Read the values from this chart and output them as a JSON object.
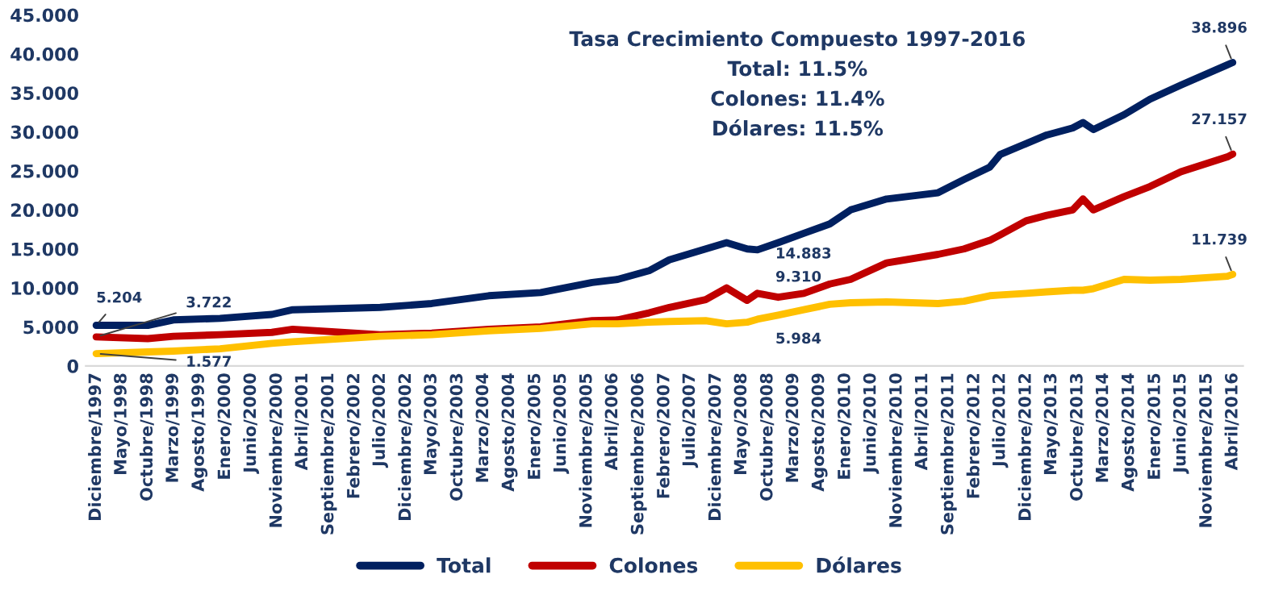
{
  "chart_data": {
    "type": "line",
    "annotations": [
      "Tasa Crecimiento Compuesto 1997-2016",
      "Total: 11.5%",
      "Colones: 11.4%",
      "Dólares: 11.5%"
    ],
    "x": [
      "1997-12",
      "1998-10",
      "1999-03",
      "1999-12",
      "2000-10",
      "2001-02",
      "2002-07",
      "2003-05",
      "2004-04",
      "2005-02",
      "2005-12",
      "2006-05",
      "2006-11",
      "2007-03",
      "2007-10",
      "2008-02",
      "2008-06",
      "2008-08",
      "2008-12",
      "2009-05",
      "2009-10",
      "2010-02",
      "2010-09",
      "2011-07",
      "2011-12",
      "2012-05",
      "2012-07",
      "2012-12",
      "2013-04",
      "2013-09",
      "2013-11",
      "2014-01",
      "2014-07",
      "2014-12",
      "2015-06",
      "2016-03",
      "2016-04"
    ],
    "series": [
      {
        "name": "Total",
        "color": "#002060",
        "values": [
          5.204,
          5.2,
          5.9,
          6.1,
          6.6,
          7.2,
          7.5,
          8.0,
          9.0,
          9.4,
          10.7,
          11.1,
          12.2,
          13.6,
          15.0,
          15.8,
          15.0,
          14.883,
          15.8,
          17.0,
          18.2,
          20.0,
          21.4,
          22.2,
          23.9,
          25.5,
          27.1,
          28.5,
          29.6,
          30.5,
          31.2,
          30.3,
          32.2,
          34.2,
          36.0,
          38.6,
          38.896
        ],
        "value_labels": [
          "5.204",
          null,
          null,
          null,
          null,
          null,
          null,
          null,
          null,
          null,
          null,
          null,
          null,
          null,
          null,
          null,
          null,
          "14.883",
          null,
          null,
          null,
          null,
          null,
          null,
          null,
          null,
          null,
          null,
          null,
          null,
          null,
          null,
          null,
          null,
          null,
          null,
          "38.896"
        ]
      },
      {
        "name": "Colones",
        "color": "#c00000",
        "values": [
          3.722,
          3.5,
          3.8,
          4.0,
          4.3,
          4.7,
          4.0,
          4.2,
          4.7,
          5.0,
          5.8,
          5.9,
          6.8,
          7.5,
          8.5,
          10.0,
          8.4,
          9.31,
          8.8,
          9.3,
          10.5,
          11.1,
          13.2,
          14.3,
          15.0,
          16.1,
          16.8,
          18.6,
          19.3,
          20.0,
          21.4,
          20.0,
          21.7,
          23.0,
          24.9,
          26.8,
          27.157
        ],
        "value_labels": [
          "3.722",
          null,
          null,
          null,
          null,
          null,
          null,
          null,
          null,
          null,
          null,
          null,
          null,
          null,
          null,
          null,
          null,
          "9.310",
          null,
          null,
          null,
          null,
          null,
          null,
          null,
          null,
          null,
          null,
          null,
          null,
          null,
          null,
          null,
          null,
          null,
          null,
          "27.157"
        ]
      },
      {
        "name": "Dólares",
        "color": "#ffc000",
        "values": [
          1.577,
          1.8,
          1.9,
          2.2,
          2.9,
          3.1,
          3.8,
          4.0,
          4.5,
          4.8,
          5.4,
          5.4,
          5.6,
          5.7,
          5.8,
          5.4,
          5.6,
          5.984,
          6.5,
          7.2,
          7.9,
          8.1,
          8.2,
          8.0,
          8.3,
          9.0,
          9.1,
          9.3,
          9.5,
          9.7,
          9.7,
          9.9,
          11.1,
          11.0,
          11.1,
          11.5,
          11.739
        ],
        "value_labels": [
          "1.577",
          null,
          null,
          null,
          null,
          null,
          null,
          null,
          null,
          null,
          null,
          null,
          null,
          null,
          null,
          null,
          null,
          "5.984",
          null,
          null,
          null,
          null,
          null,
          null,
          null,
          null,
          null,
          null,
          null,
          null,
          null,
          null,
          null,
          null,
          null,
          null,
          "11.739"
        ]
      }
    ],
    "xlim": [
      "1997-10",
      "2016-06"
    ],
    "xticks": [
      {
        "value": "1997-12",
        "label": "Diciembre/1997"
      },
      {
        "value": "1998-05",
        "label": "Mayo/1998"
      },
      {
        "value": "1998-10",
        "label": "Octubre/1998"
      },
      {
        "value": "1999-03",
        "label": "Marzo/1999"
      },
      {
        "value": "1999-08",
        "label": "Agosto/1999"
      },
      {
        "value": "2000-01",
        "label": "Enero/2000"
      },
      {
        "value": "2000-06",
        "label": "Junio/2000"
      },
      {
        "value": "2000-11",
        "label": "Noviembre/2000"
      },
      {
        "value": "2001-04",
        "label": "Abril/2001"
      },
      {
        "value": "2001-09",
        "label": "Septiembre/2001"
      },
      {
        "value": "2002-02",
        "label": "Febrero/2002"
      },
      {
        "value": "2002-07",
        "label": "Julio/2002"
      },
      {
        "value": "2002-12",
        "label": "Diciembre/2002"
      },
      {
        "value": "2003-05",
        "label": "Mayo/2003"
      },
      {
        "value": "2003-10",
        "label": "Octubre/2003"
      },
      {
        "value": "2004-03",
        "label": "Marzo/2004"
      },
      {
        "value": "2004-08",
        "label": "Agosto/2004"
      },
      {
        "value": "2005-01",
        "label": "Enero/2005"
      },
      {
        "value": "2005-06",
        "label": "Junio/2005"
      },
      {
        "value": "2005-11",
        "label": "Noviembre/2005"
      },
      {
        "value": "2006-04",
        "label": "Abril/2006"
      },
      {
        "value": "2006-09",
        "label": "Septiembre/2006"
      },
      {
        "value": "2007-02",
        "label": "Febrero/2007"
      },
      {
        "value": "2007-07",
        "label": "Julio/2007"
      },
      {
        "value": "2007-12",
        "label": "Diciembre/2007"
      },
      {
        "value": "2008-05",
        "label": "Mayo/2008"
      },
      {
        "value": "2008-10",
        "label": "Octubre/2008"
      },
      {
        "value": "2009-03",
        "label": "Marzo/2009"
      },
      {
        "value": "2009-08",
        "label": "Agosto/2009"
      },
      {
        "value": "2010-01",
        "label": "Enero/2010"
      },
      {
        "value": "2010-06",
        "label": "Junio/2010"
      },
      {
        "value": "2010-11",
        "label": "Noviembre/2010"
      },
      {
        "value": "2011-04",
        "label": "Abril/2011"
      },
      {
        "value": "2011-09",
        "label": "Septiembre/2011"
      },
      {
        "value": "2012-02",
        "label": "Febrero/2012"
      },
      {
        "value": "2012-07",
        "label": "Julio/2012"
      },
      {
        "value": "2012-12",
        "label": "Diciembre/2012"
      },
      {
        "value": "2013-05",
        "label": "Mayo/2013"
      },
      {
        "value": "2013-10",
        "label": "Octubre/2013"
      },
      {
        "value": "2014-03",
        "label": "Marzo/2014"
      },
      {
        "value": "2014-08",
        "label": "Agosto/2014"
      },
      {
        "value": "2015-01",
        "label": "Enero/2015"
      },
      {
        "value": "2015-06",
        "label": "Junio/2015"
      },
      {
        "value": "2015-11",
        "label": "Noviembre/2015"
      },
      {
        "value": "2016-04",
        "label": "Abril/2016"
      }
    ],
    "ylim": [
      0,
      45
    ],
    "yticks": [
      0,
      {
        "value": 5,
        "label": "5.000"
      },
      {
        "value": 10,
        "label": "10.000"
      },
      {
        "value": 15,
        "label": "15.000"
      },
      {
        "value": 20,
        "label": "20.000"
      },
      {
        "value": 25,
        "label": "25.000"
      },
      {
        "value": 30,
        "label": "30.000"
      },
      {
        "value": 35,
        "label": "35.000"
      },
      {
        "value": 40,
        "label": "40.000"
      },
      {
        "value": 45,
        "label": "45.000"
      }
    ],
    "grid": false,
    "legend": "bottom",
    "marker": "none",
    "line_style": "solid"
  }
}
